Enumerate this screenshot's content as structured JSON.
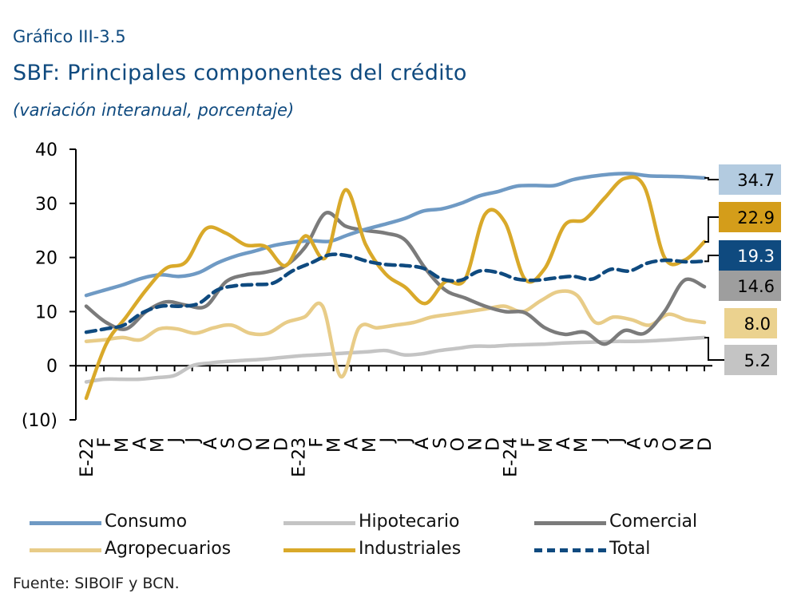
{
  "header": {
    "figure_number": "Gráfico III-3.5",
    "title": "SBF: Principales componentes del crédito",
    "subtitle": "(variación interanual, porcentaje)"
  },
  "source": "Fuente: SIBOIF y BCN.",
  "chart_data": {
    "type": "line",
    "xlabels": [
      "E-22",
      "F",
      "M",
      "A",
      "M",
      "J",
      "J",
      "A",
      "S",
      "O",
      "N",
      "D",
      "E-23",
      "F",
      "M",
      "A",
      "M",
      "J",
      "J",
      "A",
      "S",
      "O",
      "N",
      "D",
      "E-24",
      "F",
      "M",
      "A",
      "M",
      "J",
      "J",
      "A",
      "S",
      "O",
      "N",
      "D"
    ],
    "yticks": [
      "40",
      "30",
      "20",
      "10",
      "0",
      "(10)"
    ],
    "ylim": [
      -10,
      40
    ],
    "legend_position": "bottom",
    "series": [
      {
        "name": "Consumo",
        "color": "#6f9ac4",
        "dash": false,
        "end_label": "34.7",
        "label_bg": "#b3cbe0",
        "label_color": "#000000",
        "values": [
          13.0,
          14.0,
          15.0,
          16.2,
          16.8,
          16.5,
          17.2,
          19.0,
          20.3,
          21.2,
          22.2,
          22.8,
          23.1,
          23.0,
          24.2,
          25.3,
          26.2,
          27.2,
          28.6,
          29.0,
          30.0,
          31.4,
          32.2,
          33.2,
          33.3,
          33.3,
          34.4,
          35.0,
          35.4,
          35.5,
          35.1,
          35.0,
          34.9,
          34.7
        ]
      },
      {
        "name": "Hipotecario",
        "color": "#c4c4c4",
        "dash": false,
        "end_label": "5.2",
        "label_bg": "#c4c4c4",
        "label_color": "#000000",
        "values": [
          -3.0,
          -2.5,
          -2.5,
          -2.5,
          -2.2,
          -1.8,
          0.0,
          0.5,
          0.8,
          1.0,
          1.2,
          1.5,
          1.8,
          2.0,
          2.2,
          2.4,
          2.6,
          2.8,
          2.0,
          2.2,
          2.8,
          3.2,
          3.6,
          3.6,
          3.8,
          3.9,
          4.0,
          4.2,
          4.3,
          4.4,
          4.5,
          4.5,
          4.6,
          4.8,
          5.0,
          5.2
        ]
      },
      {
        "name": "Comercial",
        "color": "#7b7b7b",
        "dash": false,
        "end_label": "14.6",
        "label_bg": "#9e9e9e",
        "label_color": "#000000",
        "values": [
          11.0,
          8.0,
          6.8,
          10.0,
          11.8,
          11.2,
          11.0,
          15.5,
          16.8,
          17.3,
          18.5,
          22.0,
          28.2,
          25.8,
          25.0,
          24.5,
          23.2,
          18.0,
          14.0,
          12.5,
          11.0,
          10.0,
          9.8,
          7.0,
          5.8,
          6.2,
          4.0,
          6.5,
          6.0,
          10.0,
          15.8,
          14.6
        ]
      },
      {
        "name": "Agropecuarios",
        "color": "#e8cc88",
        "dash": false,
        "end_label": "8.0",
        "label_bg": "#ebd28f",
        "label_color": "#000000",
        "values": [
          4.5,
          4.8,
          5.2,
          4.8,
          6.8,
          6.8,
          6.0,
          7.0,
          7.5,
          6.0,
          6.0,
          8.0,
          9.0,
          11.0,
          -2.0,
          7.0,
          7.0,
          7.5,
          8.0,
          9.0,
          9.5,
          10.0,
          10.5,
          11.0,
          10.0,
          12.0,
          13.7,
          13.0,
          8.0,
          9.0,
          8.5,
          7.5,
          9.5,
          8.5,
          8.0
        ]
      },
      {
        "name": "Industriales",
        "color": "#d9a92a",
        "dash": false,
        "end_label": "22.9",
        "label_bg": "#d49d1a",
        "label_color": "#000000",
        "values": [
          -6.0,
          4.0,
          9.0,
          14.0,
          18.0,
          19.2,
          25.3,
          24.5,
          22.3,
          22.0,
          18.5,
          24.0,
          20.0,
          32.5,
          22.5,
          17.0,
          14.5,
          11.5,
          15.5,
          16.0,
          28.0,
          26.5,
          16.0,
          18.0,
          26.0,
          27.0,
          31.0,
          34.6,
          33.0,
          20.0,
          19.5,
          22.9
        ]
      },
      {
        "name": "Total",
        "color": "#0f4a7f",
        "dash": true,
        "end_label": "19.3",
        "label_bg": "#0f4a7f",
        "label_color": "#ffffff",
        "values": [
          6.2,
          6.8,
          7.5,
          9.8,
          11.0,
          11.0,
          11.5,
          14.0,
          14.8,
          15.0,
          15.3,
          17.5,
          19.0,
          20.5,
          20.3,
          19.3,
          18.7,
          18.5,
          18.0,
          16.0,
          15.8,
          17.5,
          17.2,
          16.0,
          15.8,
          16.2,
          16.5,
          16.0,
          17.8,
          17.5,
          19.0,
          19.5,
          19.2,
          19.3
        ]
      }
    ]
  }
}
